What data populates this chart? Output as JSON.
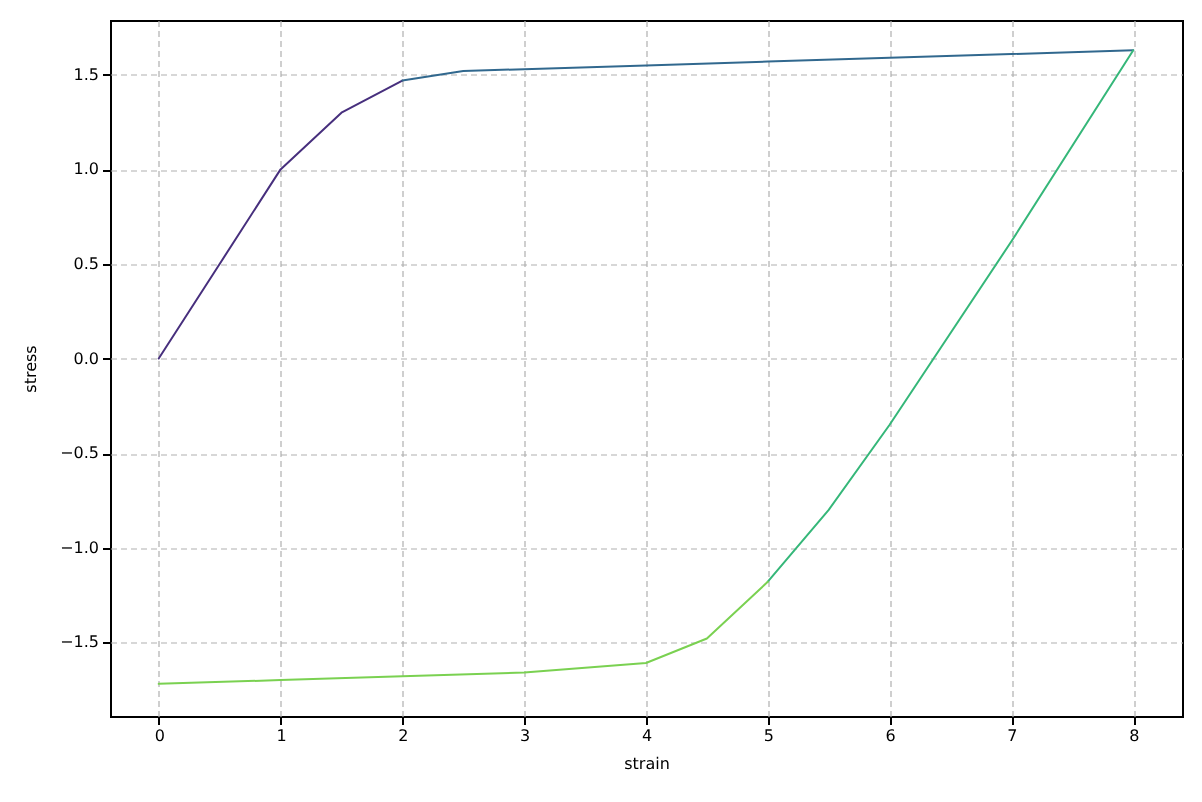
{
  "chart_data": {
    "type": "line",
    "xlabel": "strain",
    "ylabel": "stress",
    "xlim": [
      -0.4,
      8.4
    ],
    "ylim": [
      -1.89,
      1.79
    ],
    "xticks": [
      0,
      1,
      2,
      3,
      4,
      5,
      6,
      7,
      8
    ],
    "yticks": [
      {
        "value": -1.5,
        "label": "−1.5"
      },
      {
        "value": -1.0,
        "label": "−1.0"
      },
      {
        "value": -0.5,
        "label": "−0.5"
      },
      {
        "value": 0,
        "label": "0.0"
      },
      {
        "value": 0.5,
        "label": "0.5"
      },
      {
        "value": 1.0,
        "label": "1.0"
      },
      {
        "value": 1.5,
        "label": "1.5"
      }
    ],
    "grid": true,
    "line_style": "solid",
    "series": [
      {
        "color": "#472f7d",
        "x": [
          0,
          0.5,
          1,
          1.5,
          2
        ],
        "values": [
          0,
          0.5,
          1.0,
          1.3,
          1.47
        ]
      },
      {
        "color": "#31688e",
        "x": [
          2,
          2.5,
          3,
          4,
          5,
          6,
          7,
          8
        ],
        "values": [
          1.47,
          1.52,
          1.53,
          1.55,
          1.57,
          1.59,
          1.61,
          1.63
        ]
      },
      {
        "color": "#35b779",
        "x": [
          8,
          7,
          6,
          5.5,
          5
        ],
        "values": [
          1.63,
          0.62,
          -0.35,
          -0.8,
          -1.18
        ]
      },
      {
        "color": "#7ad151",
        "x": [
          5,
          4.5,
          4,
          3,
          2,
          1,
          0
        ],
        "values": [
          -1.18,
          -1.48,
          -1.61,
          -1.66,
          -1.68,
          -1.7,
          -1.72
        ]
      }
    ]
  }
}
